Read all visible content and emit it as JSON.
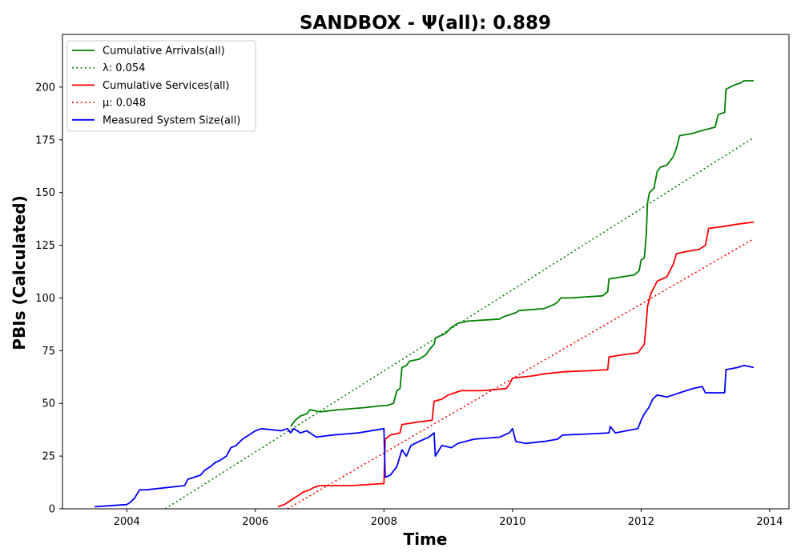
{
  "chart_data": {
    "type": "line",
    "title": "SANDBOX -  Ψ(all): 0.889",
    "xlabel": "Time",
    "ylabel": "PBIs (Calculated)",
    "xlim": [
      2003.0,
      2014.3
    ],
    "ylim": [
      0,
      225
    ],
    "xticks": [
      2004,
      2006,
      2008,
      2010,
      2012,
      2014
    ],
    "yticks": [
      0,
      25,
      50,
      75,
      100,
      125,
      150,
      175,
      200
    ],
    "grid": false,
    "legend_position": "upper-left",
    "series": [
      {
        "name": "Cumulative Arrivals(all)",
        "color": "#008000",
        "style": "solid",
        "points": [
          [
            2006.55,
            39
          ],
          [
            2006.62,
            42
          ],
          [
            2006.7,
            44
          ],
          [
            2006.8,
            45
          ],
          [
            2006.85,
            47
          ],
          [
            2007.0,
            46
          ],
          [
            2007.3,
            47
          ],
          [
            2007.7,
            48
          ],
          [
            2008.0,
            49
          ],
          [
            2008.05,
            49
          ],
          [
            2008.15,
            50
          ],
          [
            2008.2,
            56
          ],
          [
            2008.25,
            57
          ],
          [
            2008.28,
            67
          ],
          [
            2008.35,
            68
          ],
          [
            2008.4,
            70
          ],
          [
            2008.55,
            71
          ],
          [
            2008.65,
            73
          ],
          [
            2008.72,
            76
          ],
          [
            2008.78,
            78
          ],
          [
            2008.8,
            81
          ],
          [
            2008.95,
            83
          ],
          [
            2009.05,
            86
          ],
          [
            2009.15,
            88
          ],
          [
            2009.3,
            89
          ],
          [
            2009.8,
            90
          ],
          [
            2009.85,
            91
          ],
          [
            2010.05,
            93
          ],
          [
            2010.1,
            94
          ],
          [
            2010.5,
            95
          ],
          [
            2010.65,
            97
          ],
          [
            2010.7,
            98
          ],
          [
            2010.75,
            100
          ],
          [
            2010.9,
            100
          ],
          [
            2011.4,
            101
          ],
          [
            2011.48,
            103
          ],
          [
            2011.5,
            109
          ],
          [
            2011.7,
            110
          ],
          [
            2011.9,
            111
          ],
          [
            2011.97,
            113
          ],
          [
            2012.0,
            118
          ],
          [
            2012.05,
            119
          ],
          [
            2012.08,
            130
          ],
          [
            2012.1,
            145
          ],
          [
            2012.13,
            150
          ],
          [
            2012.2,
            152
          ],
          [
            2012.25,
            160
          ],
          [
            2012.3,
            162
          ],
          [
            2012.4,
            163
          ],
          [
            2012.5,
            167
          ],
          [
            2012.55,
            171
          ],
          [
            2012.6,
            177
          ],
          [
            2012.8,
            178
          ],
          [
            2012.9,
            179
          ],
          [
            2013.15,
            181
          ],
          [
            2013.2,
            187
          ],
          [
            2013.3,
            188
          ],
          [
            2013.32,
            199
          ],
          [
            2013.45,
            201
          ],
          [
            2013.55,
            202
          ],
          [
            2013.6,
            203
          ],
          [
            2013.75,
            203
          ]
        ]
      },
      {
        "name": "λ: 0.054",
        "color": "#008000",
        "style": "dotted",
        "points": [
          [
            2004.6,
            0
          ],
          [
            2013.75,
            176
          ]
        ]
      },
      {
        "name": "Cumulative Services(all)",
        "color": "#ff0000",
        "style": "solid",
        "points": [
          [
            2006.35,
            1
          ],
          [
            2006.45,
            2
          ],
          [
            2006.55,
            4
          ],
          [
            2006.65,
            6
          ],
          [
            2006.75,
            8
          ],
          [
            2006.85,
            9
          ],
          [
            2006.9,
            10
          ],
          [
            2007.0,
            11
          ],
          [
            2007.5,
            11
          ],
          [
            2008.0,
            12
          ],
          [
            2008.02,
            33
          ],
          [
            2008.1,
            35
          ],
          [
            2008.25,
            36
          ],
          [
            2008.28,
            40
          ],
          [
            2008.5,
            41
          ],
          [
            2008.75,
            42
          ],
          [
            2008.78,
            51
          ],
          [
            2008.9,
            52
          ],
          [
            2009.0,
            54
          ],
          [
            2009.1,
            55
          ],
          [
            2009.2,
            56
          ],
          [
            2009.5,
            56
          ],
          [
            2009.9,
            57
          ],
          [
            2009.95,
            59
          ],
          [
            2010.0,
            62
          ],
          [
            2010.3,
            63
          ],
          [
            2010.5,
            64
          ],
          [
            2010.8,
            65
          ],
          [
            2011.2,
            65.5
          ],
          [
            2011.48,
            66
          ],
          [
            2011.5,
            72
          ],
          [
            2011.7,
            73
          ],
          [
            2011.95,
            74
          ],
          [
            2012.0,
            76
          ],
          [
            2012.05,
            78
          ],
          [
            2012.08,
            88
          ],
          [
            2012.1,
            96
          ],
          [
            2012.15,
            102
          ],
          [
            2012.25,
            108
          ],
          [
            2012.4,
            110
          ],
          [
            2012.5,
            116
          ],
          [
            2012.55,
            121
          ],
          [
            2012.7,
            122
          ],
          [
            2012.9,
            123
          ],
          [
            2013.0,
            125
          ],
          [
            2013.05,
            133
          ],
          [
            2013.3,
            134
          ],
          [
            2013.5,
            135
          ],
          [
            2013.75,
            136
          ]
        ]
      },
      {
        "name": "μ: 0.048",
        "color": "#ff0000",
        "style": "dotted",
        "points": [
          [
            2006.5,
            0
          ],
          [
            2013.75,
            128
          ]
        ]
      },
      {
        "name": "Measured System Size(all)",
        "color": "#0000ff",
        "style": "solid",
        "points": [
          [
            2003.5,
            1
          ],
          [
            2004.0,
            2
          ],
          [
            2004.05,
            3
          ],
          [
            2004.12,
            5
          ],
          [
            2004.2,
            9
          ],
          [
            2004.3,
            9
          ],
          [
            2004.9,
            11
          ],
          [
            2004.95,
            14
          ],
          [
            2005.05,
            15
          ],
          [
            2005.15,
            16
          ],
          [
            2005.2,
            18
          ],
          [
            2005.3,
            20
          ],
          [
            2005.38,
            22
          ],
          [
            2005.45,
            23
          ],
          [
            2005.55,
            25
          ],
          [
            2005.62,
            29
          ],
          [
            2005.7,
            30
          ],
          [
            2005.8,
            33
          ],
          [
            2005.9,
            35
          ],
          [
            2006.0,
            37
          ],
          [
            2006.1,
            38
          ],
          [
            2006.4,
            37
          ],
          [
            2006.5,
            38
          ],
          [
            2006.55,
            36
          ],
          [
            2006.6,
            38
          ],
          [
            2006.7,
            36
          ],
          [
            2006.8,
            37
          ],
          [
            2006.95,
            34
          ],
          [
            2007.2,
            35
          ],
          [
            2007.6,
            36
          ],
          [
            2008.0,
            38
          ],
          [
            2008.02,
            15
          ],
          [
            2008.1,
            16
          ],
          [
            2008.2,
            20
          ],
          [
            2008.28,
            28
          ],
          [
            2008.35,
            25
          ],
          [
            2008.42,
            30
          ],
          [
            2008.55,
            32
          ],
          [
            2008.7,
            34
          ],
          [
            2008.78,
            36
          ],
          [
            2008.8,
            25
          ],
          [
            2008.9,
            30
          ],
          [
            2009.05,
            29
          ],
          [
            2009.15,
            31
          ],
          [
            2009.4,
            33
          ],
          [
            2009.8,
            34
          ],
          [
            2009.95,
            36
          ],
          [
            2010.0,
            38
          ],
          [
            2010.05,
            32
          ],
          [
            2010.2,
            31
          ],
          [
            2010.5,
            32
          ],
          [
            2010.7,
            33
          ],
          [
            2010.78,
            35
          ],
          [
            2011.2,
            35.5
          ],
          [
            2011.5,
            36
          ],
          [
            2011.52,
            39
          ],
          [
            2011.6,
            36
          ],
          [
            2011.95,
            38
          ],
          [
            2012.0,
            42
          ],
          [
            2012.05,
            45
          ],
          [
            2012.12,
            48
          ],
          [
            2012.18,
            52
          ],
          [
            2012.25,
            54
          ],
          [
            2012.4,
            53
          ],
          [
            2012.5,
            54
          ],
          [
            2012.6,
            55
          ],
          [
            2012.8,
            57
          ],
          [
            2012.95,
            58
          ],
          [
            2013.0,
            55
          ],
          [
            2013.3,
            55
          ],
          [
            2013.32,
            66
          ],
          [
            2013.5,
            67
          ],
          [
            2013.6,
            68
          ],
          [
            2013.75,
            67
          ]
        ]
      }
    ]
  }
}
